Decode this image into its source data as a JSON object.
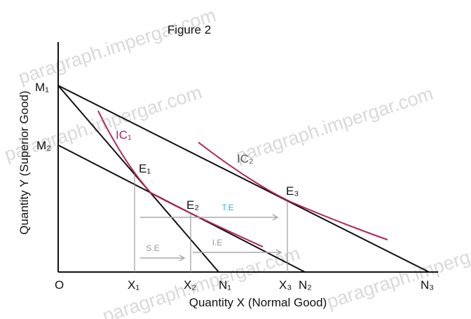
{
  "title": "Figure 2",
  "axes": {
    "y_label": "Quantity Y (Superior Good)",
    "x_label": "Quantity X (Normal Good)",
    "origin": "O"
  },
  "points": {
    "m1": "M₁",
    "m2": "M₂",
    "e1": "E₁",
    "e2": "E₂",
    "e3": "E₃",
    "x1": "X₁",
    "x2": "X₂",
    "x3": "X₃",
    "n1": "N₁",
    "n2": "N₂",
    "n3": "N₃"
  },
  "curves": {
    "ic1": "IC₁",
    "ic2": "IC₂"
  },
  "effects": {
    "total": "T.E",
    "substitution": "S.E",
    "income": "I.E"
  },
  "watermarks": [
    "paragraph.impergar.com",
    "paragraph.impergar.com",
    "paragraph.impergar.com",
    "paragraph.impergar.com",
    "paragraph.impergar.com"
  ]
}
